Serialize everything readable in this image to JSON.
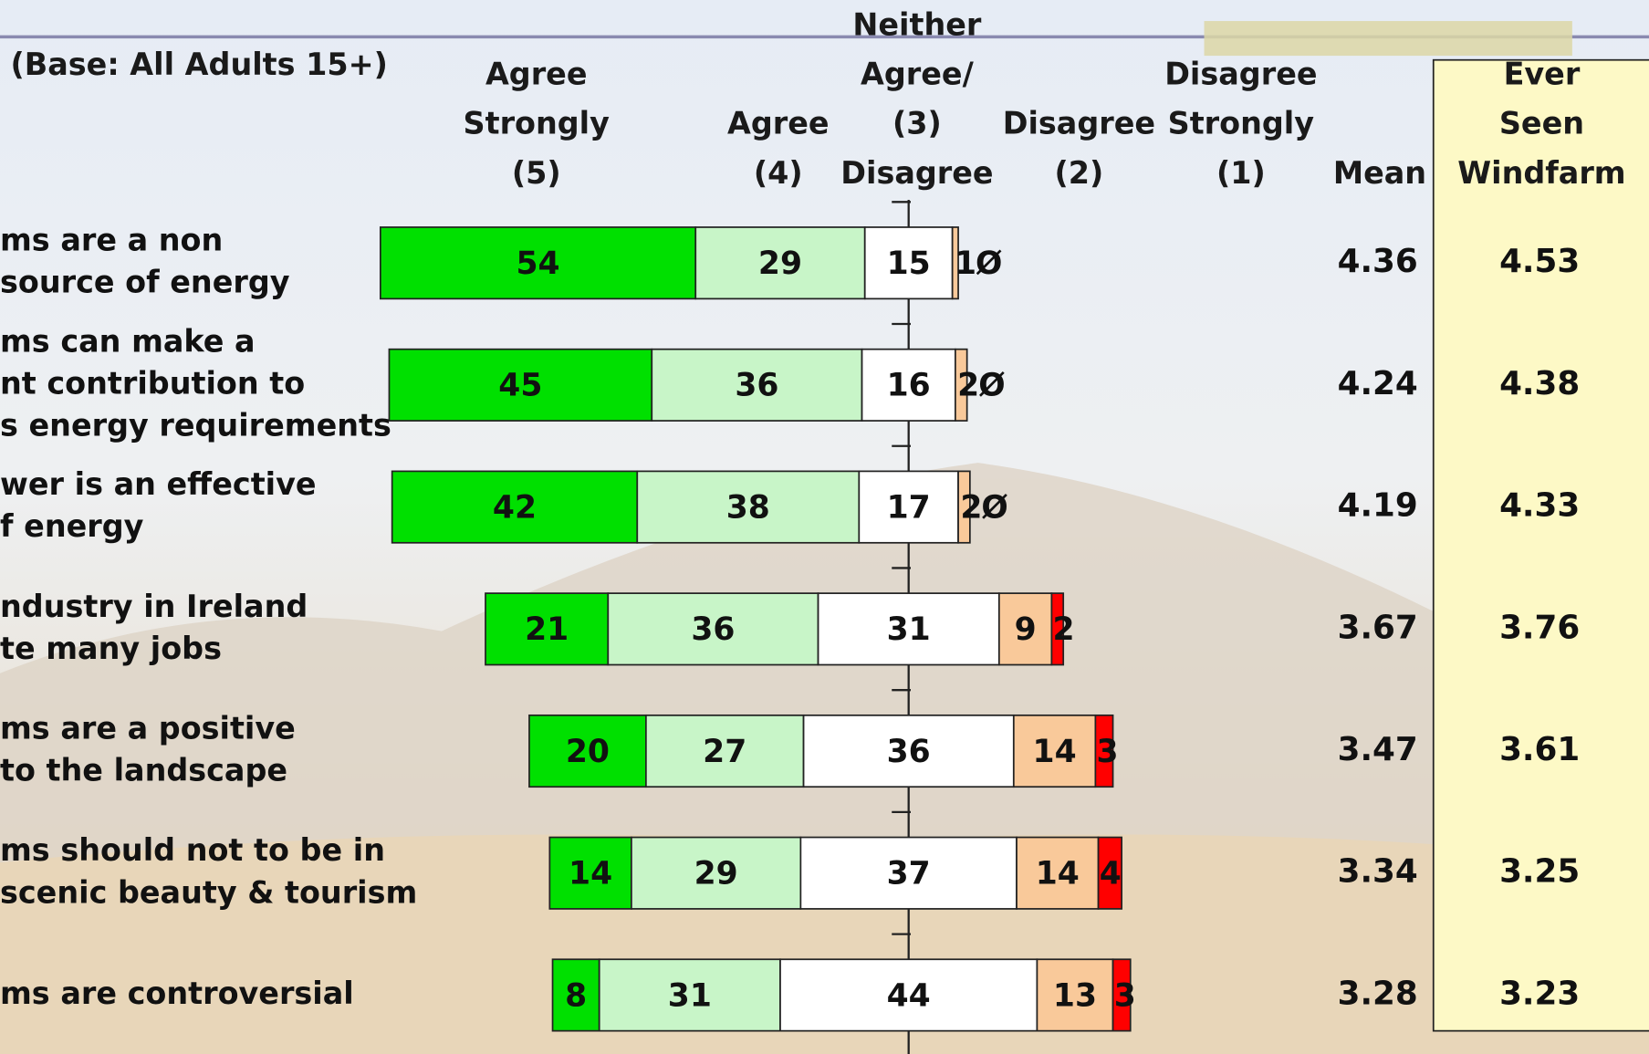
{
  "chart_data": {
    "type": "diverging-bar",
    "base_note": "(Base: All Adults 15+)",
    "categories": [
      [
        "ms are a non",
        "source of energy"
      ],
      [
        "ms can make a",
        "nt contribution to",
        "s energy requirements"
      ],
      [
        "wer is an effective",
        "f energy"
      ],
      [
        "ndustry in Ireland",
        "te many jobs"
      ],
      [
        "ms are a positive",
        "to the landscape"
      ],
      [
        "ms should not to be in",
        "scenic beauty & tourism"
      ],
      [
        "ms are controversial"
      ]
    ],
    "series": [
      {
        "name": [
          "Agree",
          "Strongly",
          "(5)"
        ],
        "color": "#00e000",
        "values": [
          54,
          45,
          42,
          21,
          20,
          14,
          8
        ]
      },
      {
        "name": [
          "Agree",
          "(4)"
        ],
        "color": "#c8f5c8",
        "values": [
          29,
          36,
          38,
          36,
          27,
          29,
          31
        ]
      },
      {
        "name": [
          "Neither",
          "Agree/",
          "(3)",
          "Disagree"
        ],
        "color": "#ffffff",
        "values": [
          15,
          16,
          17,
          31,
          36,
          37,
          44
        ]
      },
      {
        "name": [
          "Disagree",
          "(2)"
        ],
        "color": "#f9c99a",
        "values": [
          1,
          2,
          2,
          9,
          14,
          14,
          13
        ]
      },
      {
        "name": [
          "Disagree",
          "Strongly",
          "(1)"
        ],
        "color": "#ff0000",
        "values": [
          0,
          0,
          0,
          2,
          3,
          4,
          3
        ],
        "value_labels": [
          "Ø",
          "Ø",
          "Ø",
          "2",
          "3",
          "4",
          "3"
        ]
      }
    ],
    "columns": [
      {
        "header": [
          "Mean"
        ],
        "values": [
          4.36,
          4.24,
          4.19,
          3.67,
          3.47,
          3.34,
          3.28
        ]
      },
      {
        "header": [
          "Ever",
          "Seen",
          "Windfarm"
        ],
        "values": [
          4.53,
          4.38,
          4.33,
          3.76,
          3.61,
          3.25,
          3.23
        ]
      }
    ]
  }
}
